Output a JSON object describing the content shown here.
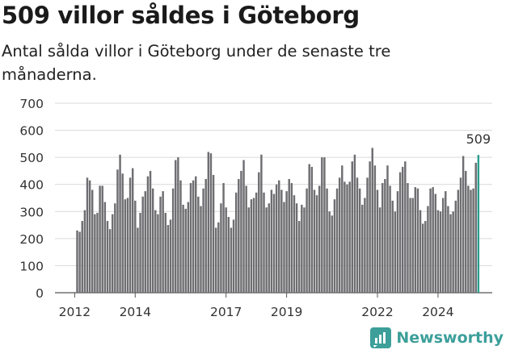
{
  "title": "509 villor såldes i Göteborg",
  "subtitle": "Antal sålda villor i Göteborg under de senaste tre månaderna.",
  "brand": {
    "name": "Newsworthy",
    "icon": "newsworthy-logo-icon"
  },
  "colors": {
    "bar": "#6e6e72",
    "highlight": "#2a9d8f",
    "grid": "#d9d9d9",
    "brand": "#3c9f9a"
  },
  "chart_data": {
    "type": "bar",
    "x_start": "2012-02",
    "x_end": "2025-02",
    "xlabel": "",
    "ylabel": "",
    "ylim": [
      0,
      700
    ],
    "yticks": [
      0,
      100,
      200,
      300,
      400,
      500,
      600,
      700
    ],
    "xtick_labels": [
      "2012",
      "2014",
      "2017",
      "2019",
      "2022",
      "2024"
    ],
    "xtick_positions": [
      "2012-01",
      "2014-01",
      "2017-01",
      "2019-01",
      "2022-01",
      "2024-01"
    ],
    "grid": true,
    "highlight_label": "509",
    "values": [
      230,
      225,
      265,
      305,
      425,
      415,
      380,
      290,
      295,
      395,
      395,
      335,
      265,
      235,
      290,
      330,
      455,
      510,
      440,
      345,
      350,
      425,
      460,
      340,
      240,
      295,
      355,
      375,
      430,
      450,
      385,
      305,
      290,
      355,
      375,
      295,
      250,
      270,
      385,
      490,
      500,
      415,
      325,
      310,
      335,
      405,
      415,
      430,
      355,
      320,
      385,
      420,
      520,
      515,
      435,
      240,
      260,
      330,
      405,
      315,
      280,
      240,
      270,
      370,
      420,
      450,
      490,
      395,
      315,
      345,
      350,
      370,
      445,
      510,
      370,
      315,
      330,
      380,
      365,
      400,
      415,
      380,
      335,
      375,
      420,
      405,
      360,
      330,
      265,
      325,
      315,
      385,
      475,
      465,
      380,
      360,
      395,
      500,
      500,
      385,
      300,
      285,
      345,
      385,
      425,
      470,
      410,
      400,
      410,
      485,
      510,
      425,
      385,
      325,
      350,
      425,
      485,
      535,
      470,
      380,
      315,
      405,
      420,
      470,
      395,
      340,
      300,
      375,
      445,
      465,
      485,
      405,
      350,
      350,
      390,
      385,
      305,
      255,
      265,
      320,
      385,
      390,
      365,
      305,
      300,
      350,
      375,
      320,
      290,
      300,
      340,
      380,
      425,
      505,
      450,
      395,
      380,
      385,
      480,
      509
    ]
  }
}
